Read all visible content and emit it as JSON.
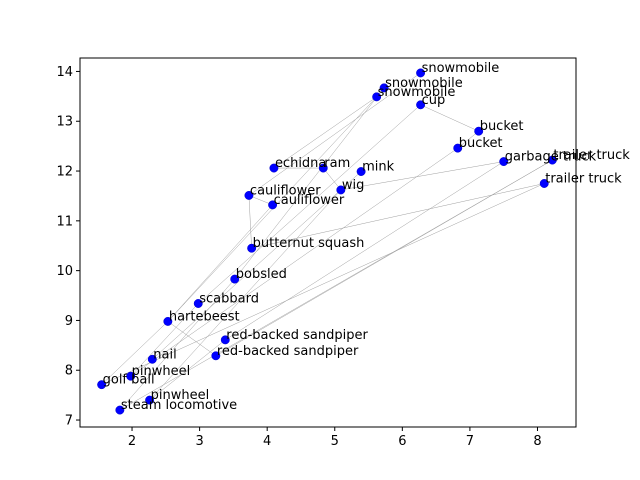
{
  "chart_data": {
    "type": "scatter",
    "title": "",
    "xlabel": "",
    "ylabel": "",
    "xlim": [
      1.23,
      8.57
    ],
    "ylim": [
      6.86,
      14.27
    ],
    "xticks": [
      2,
      3,
      4,
      5,
      6,
      7,
      8
    ],
    "yticks": [
      7,
      8,
      9,
      10,
      11,
      12,
      13,
      14
    ],
    "grid": false,
    "marker_color": "#0000ff",
    "edge_color": "#a0a0a0",
    "points": [
      {
        "label": "snowmobile",
        "x": 6.27,
        "y": 13.97
      },
      {
        "label": "snowmobile",
        "x": 5.73,
        "y": 13.67
      },
      {
        "label": "snowmobile",
        "x": 5.62,
        "y": 13.49
      },
      {
        "label": "cup",
        "x": 6.27,
        "y": 13.33
      },
      {
        "label": "bucket",
        "x": 7.13,
        "y": 12.8
      },
      {
        "label": "bucket",
        "x": 6.82,
        "y": 12.46
      },
      {
        "label": "trailer truck",
        "x": 8.22,
        "y": 12.22
      },
      {
        "label": "garbage truck",
        "x": 7.5,
        "y": 12.19
      },
      {
        "label": "trailer truck",
        "x": 8.1,
        "y": 11.75
      },
      {
        "label": "echidna",
        "x": 4.1,
        "y": 12.06
      },
      {
        "label": "ram",
        "x": 4.83,
        "y": 12.06
      },
      {
        "label": "mink",
        "x": 5.39,
        "y": 11.99
      },
      {
        "label": "wig",
        "x": 5.09,
        "y": 11.62
      },
      {
        "label": "cauliflower",
        "x": 3.73,
        "y": 11.51
      },
      {
        "label": "cauliflower",
        "x": 4.08,
        "y": 11.32
      },
      {
        "label": "butternut squash",
        "x": 3.77,
        "y": 10.45
      },
      {
        "label": "bobsled",
        "x": 3.52,
        "y": 9.83
      },
      {
        "label": "scabbard",
        "x": 2.98,
        "y": 9.34
      },
      {
        "label": "hartebeest",
        "x": 2.53,
        "y": 8.98
      },
      {
        "label": "red-backed sandpiper",
        "x": 3.38,
        "y": 8.61
      },
      {
        "label": "red-backed sandpiper",
        "x": 3.24,
        "y": 8.29
      },
      {
        "label": "nail",
        "x": 2.3,
        "y": 8.22
      },
      {
        "label": "pinwheel",
        "x": 1.98,
        "y": 7.88
      },
      {
        "label": "golf ball",
        "x": 1.55,
        "y": 7.71
      },
      {
        "label": "pinwheel",
        "x": 2.26,
        "y": 7.4
      },
      {
        "label": "steam locomotive",
        "x": 1.82,
        "y": 7.2
      }
    ],
    "edges": [
      [
        0,
        13
      ],
      [
        1,
        16
      ],
      [
        2,
        9
      ],
      [
        3,
        17
      ],
      [
        4,
        5
      ],
      [
        4,
        3
      ],
      [
        5,
        22
      ],
      [
        6,
        20
      ],
      [
        7,
        19
      ],
      [
        7,
        12
      ],
      [
        8,
        15
      ],
      [
        8,
        23
      ],
      [
        9,
        10
      ],
      [
        10,
        12
      ],
      [
        11,
        21
      ],
      [
        12,
        24
      ],
      [
        13,
        14
      ],
      [
        13,
        15
      ],
      [
        14,
        18
      ],
      [
        16,
        25
      ],
      [
        17,
        22
      ],
      [
        18,
        20
      ],
      [
        18,
        23
      ],
      [
        19,
        24
      ],
      [
        6,
        25
      ],
      [
        2,
        18
      ]
    ]
  }
}
